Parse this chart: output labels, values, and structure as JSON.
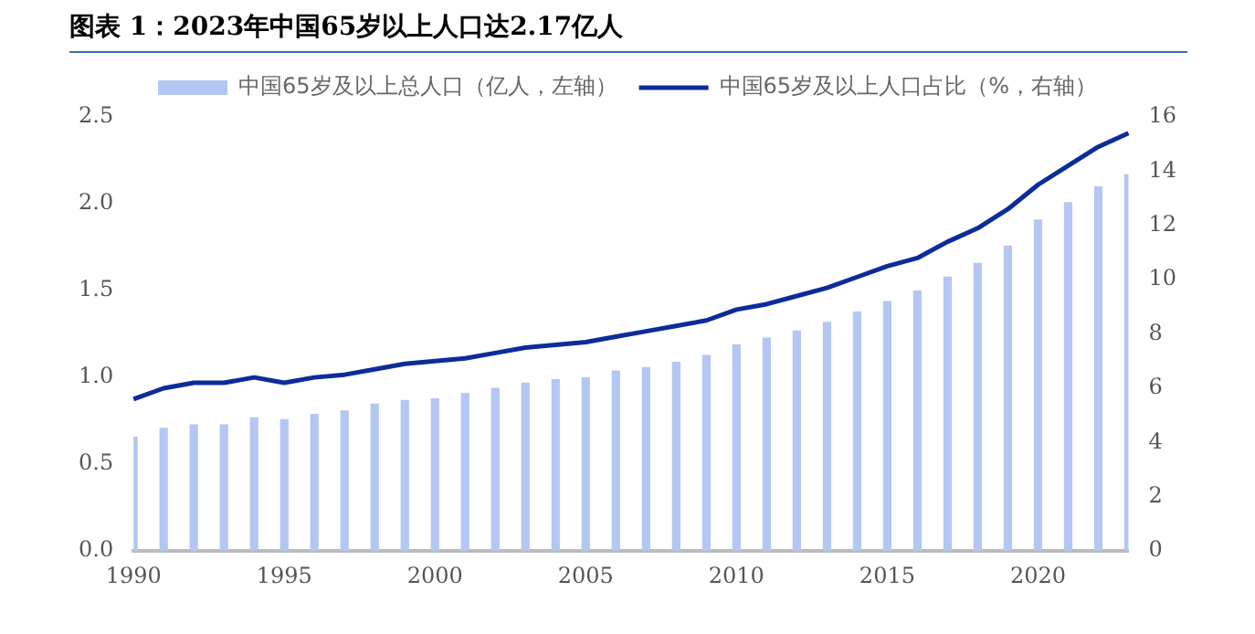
{
  "chart_data": {
    "type": "bar",
    "title": "图表 1：2023年中国65岁以上人口达2.17亿人",
    "categories": [
      "1990",
      null,
      null,
      null,
      null,
      "1995",
      null,
      null,
      null,
      null,
      "2000",
      null,
      null,
      null,
      null,
      "2005",
      null,
      null,
      null,
      null,
      "2010",
      null,
      null,
      null,
      null,
      "2015",
      null,
      null,
      null,
      null,
      "2020",
      null,
      null,
      null
    ],
    "series": [
      {
        "name": "中国65岁及以上总人口（亿人，左轴）",
        "color": "#b4c7f2",
        "values": [
          0.66,
          0.71,
          0.73,
          0.73,
          0.77,
          0.76,
          0.79,
          0.81,
          0.85,
          0.87,
          0.88,
          0.91,
          0.94,
          0.97,
          0.99,
          1.0,
          1.04,
          1.06,
          1.09,
          1.13,
          1.19,
          1.23,
          1.27,
          1.32,
          1.38,
          1.44,
          1.5,
          1.58,
          1.66,
          1.76,
          1.91,
          2.01,
          2.1,
          2.17
        ]
      },
      {
        "name": "中国65岁及以上人口占比（%，右轴）",
        "type": "line",
        "axis": "y2",
        "color": "#0c2c9c",
        "values": [
          5.6,
          6.0,
          6.2,
          6.2,
          6.4,
          6.2,
          6.4,
          6.5,
          6.7,
          6.9,
          7.0,
          7.1,
          7.3,
          7.5,
          7.6,
          7.7,
          7.9,
          8.1,
          8.3,
          8.5,
          8.9,
          9.1,
          9.4,
          9.7,
          10.1,
          10.5,
          10.8,
          11.4,
          11.9,
          12.6,
          13.5,
          14.2,
          14.9,
          15.4
        ]
      }
    ],
    "ylim": [
      0,
      2.5
    ],
    "yticks": [
      {
        "value": 0,
        "label": "0.0"
      },
      0.5,
      {
        "value": 1,
        "label": "1.0"
      },
      1.5,
      {
        "value": 2,
        "label": "2.0"
      },
      2.5
    ],
    "y2lim": [
      0,
      16
    ],
    "y2ticks": [
      0,
      2,
      4,
      6,
      8,
      10,
      12,
      14,
      16
    ],
    "grid": false,
    "legend": "top",
    "marker": "none",
    "line_style": "solid"
  }
}
